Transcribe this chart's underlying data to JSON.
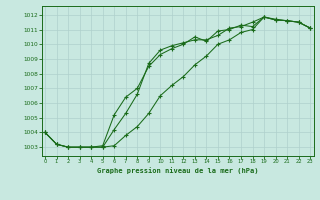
{
  "title": "Graphe pression niveau de la mer (hPa)",
  "background_color": "#c8e8e0",
  "grid_color": "#afd0cc",
  "line_color": "#1a6b1a",
  "xlim": [
    -0.3,
    23.3
  ],
  "ylim": [
    1002.4,
    1012.6
  ],
  "yticks": [
    1003,
    1004,
    1005,
    1006,
    1007,
    1008,
    1009,
    1010,
    1011,
    1012
  ],
  "xticks": [
    0,
    1,
    2,
    3,
    4,
    5,
    6,
    7,
    8,
    9,
    10,
    11,
    12,
    13,
    14,
    15,
    16,
    17,
    18,
    19,
    20,
    21,
    22,
    23
  ],
  "s1_x": [
    0,
    1,
    2,
    3,
    4,
    5,
    6,
    7,
    8,
    9,
    10,
    11,
    12,
    13,
    14,
    15,
    16,
    17,
    18,
    19,
    20,
    21,
    22,
    23
  ],
  "s1_y": [
    1004.0,
    1003.2,
    1003.0,
    1003.0,
    1003.0,
    1003.0,
    1004.2,
    1005.3,
    1006.6,
    1008.7,
    1009.6,
    1009.9,
    1010.1,
    1010.3,
    1010.3,
    1010.6,
    1011.1,
    1011.2,
    1011.5,
    1011.85,
    1011.7,
    1011.6,
    1011.5,
    1011.1
  ],
  "s2_x": [
    0,
    1,
    2,
    3,
    4,
    5,
    6,
    7,
    8,
    9,
    10,
    11,
    12,
    13,
    14,
    15,
    16,
    17,
    18,
    19,
    20,
    21,
    22,
    23
  ],
  "s2_y": [
    1004.0,
    1003.2,
    1003.0,
    1003.0,
    1003.0,
    1003.1,
    1005.2,
    1006.4,
    1007.0,
    1008.5,
    1009.3,
    1009.7,
    1010.0,
    1010.5,
    1010.2,
    1010.9,
    1011.0,
    1011.3,
    1011.2,
    1011.85,
    1011.65,
    1011.6,
    1011.5,
    1011.1
  ],
  "s3_x": [
    0,
    1,
    2,
    3,
    4,
    5,
    6,
    7,
    8,
    9,
    10,
    11,
    12,
    13,
    14,
    15,
    16,
    17,
    18,
    19,
    20,
    21,
    22,
    23
  ],
  "s3_y": [
    1004.0,
    1003.2,
    1003.0,
    1003.0,
    1003.0,
    1003.0,
    1003.1,
    1003.8,
    1004.4,
    1005.3,
    1006.5,
    1007.2,
    1007.8,
    1008.6,
    1009.2,
    1010.0,
    1010.3,
    1010.8,
    1011.0,
    1011.85,
    1011.65,
    1011.6,
    1011.5,
    1011.1
  ]
}
